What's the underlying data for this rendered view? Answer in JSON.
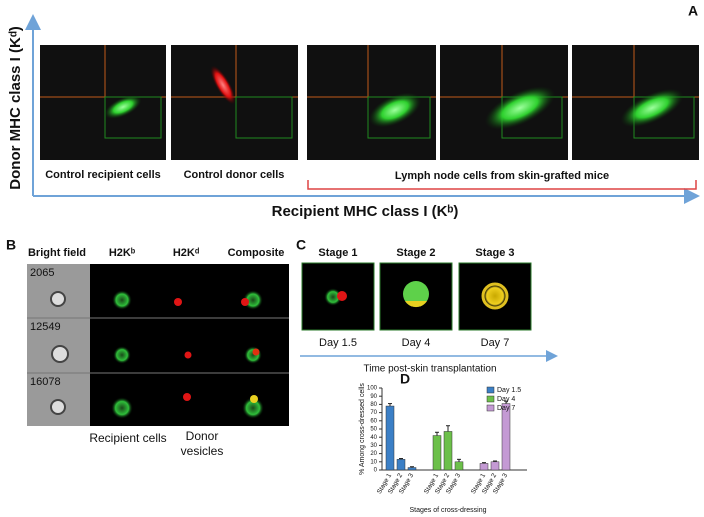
{
  "panel_a": {
    "label": "A",
    "y_axis": "Donor MHC class I (Kᵈ)",
    "x_axis": "Recipient MHC class I (Kᵇ)",
    "plot_labels": [
      "Control recipient cells",
      "Control donor cells",
      "Lymph node cells from skin-grafted mice"
    ]
  },
  "panel_b": {
    "label": "B",
    "columns": [
      "Bright field",
      "H2Kᵇ",
      "H2Kᵈ",
      "Composite"
    ],
    "rows": [
      "2065",
      "12549",
      "16078"
    ],
    "footer": [
      "Recipient cells",
      "Donor vesicles"
    ]
  },
  "panel_c": {
    "label": "C",
    "stages": [
      "Stage 1",
      "Stage 2",
      "Stage 3"
    ],
    "days": [
      "Day 1.5",
      "Day 4",
      "Day 7"
    ],
    "axis": "Time post-skin transplantation"
  },
  "panel_d_label": "D",
  "chart_data": {
    "type": "bar",
    "categories": [
      "Stage 1",
      "Stage 2",
      "Stage 3"
    ],
    "series": [
      {
        "name": "Day 1.5",
        "color": "#3b7fc6",
        "values": [
          78,
          13,
          3
        ],
        "errors": [
          3,
          1,
          1
        ]
      },
      {
        "name": "Day 4",
        "color": "#6cc04a",
        "values": [
          42,
          47,
          10
        ],
        "errors": [
          4,
          7,
          3
        ]
      },
      {
        "name": "Day 7",
        "color": "#c49ad4",
        "values": [
          8,
          10,
          81
        ],
        "errors": [
          1,
          1,
          3
        ]
      }
    ],
    "ylim": [
      0,
      100
    ],
    "yticks": [
      0,
      10,
      20,
      30,
      40,
      50,
      60,
      70,
      80,
      90,
      100
    ],
    "y_label": "% Among cross-dressed cells",
    "x_label": "Stages of cross-dressing",
    "legend": "upper right"
  }
}
